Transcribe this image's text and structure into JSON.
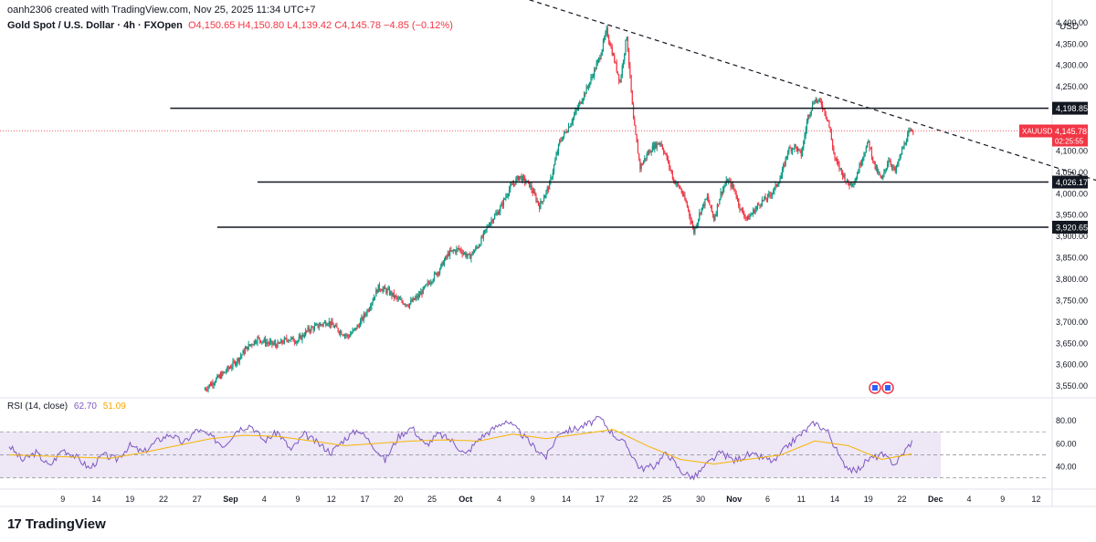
{
  "header": {
    "credit": "oanh2306 created with TradingView.com, Nov 25, 2025 11:34 UTC+7",
    "symbol_title": "Gold Spot / U.S. Dollar · 4h · FXOpen",
    "ohlc": "O4,150.65 H4,150.80 L4,139.42 C4,145.78 −4.85 (−0.12%)"
  },
  "currency": "USD",
  "logo": {
    "mark": "17",
    "text": "TradingView"
  },
  "rsi": {
    "title": "RSI (14, close)",
    "value1": "62.70",
    "value2": "51.09"
  },
  "price_tag": {
    "symbol": "XAUUSD",
    "price": "4,145.78",
    "countdown": "02:25:55"
  },
  "colors": {
    "up": "#089981",
    "down": "#f23645",
    "rsi": "#7e57c2",
    "rsi_ma": "#f7b500",
    "band": "#ede7f6"
  },
  "chart_data": [
    {
      "type": "candlestick",
      "timeframe": "4h",
      "price_axis": {
        "min": 3530,
        "max": 4420,
        "ticks": [
          4400,
          4350,
          4300,
          4250,
          4200,
          4150,
          4100,
          4050,
          4000,
          3950,
          3900,
          3850,
          3800,
          3750,
          3700,
          3650,
          3600,
          3550
        ],
        "tick_labels": [
          "4,400.00",
          "4,350.00",
          "4,300.00",
          "4,250.00",
          "4,200.00",
          "4,150.00",
          "4,100.00",
          "4,050.00",
          "4,000.00",
          "3,950.00",
          "3,900.00",
          "3,850.00",
          "3,800.00",
          "3,750.00",
          "3,700.00",
          "3,650.00",
          "3,600.00",
          "3,550.00"
        ]
      },
      "time_axis": {
        "ticks": [
          {
            "day": 9,
            "label": "9"
          },
          {
            "day": 14,
            "label": "14"
          },
          {
            "day": 19,
            "label": "19"
          },
          {
            "day": 24,
            "label": "22"
          },
          {
            "day": 29,
            "label": "27"
          },
          {
            "day": 34,
            "label": "Sep"
          },
          {
            "day": 39,
            "label": "4"
          },
          {
            "day": 44,
            "label": "9"
          },
          {
            "day": 49,
            "label": "12"
          },
          {
            "day": 54,
            "label": "17"
          },
          {
            "day": 59,
            "label": "20"
          },
          {
            "day": 64,
            "label": "25"
          },
          {
            "day": 69,
            "label": "Oct"
          },
          {
            "day": 74,
            "label": "4"
          },
          {
            "day": 79,
            "label": "9"
          },
          {
            "day": 84,
            "label": "14"
          },
          {
            "day": 89,
            "label": "17"
          },
          {
            "day": 94,
            "label": "22"
          },
          {
            "day": 99,
            "label": "25"
          },
          {
            "day": 104,
            "label": "30"
          },
          {
            "day": 109,
            "label": "Nov"
          },
          {
            "day": 114,
            "label": "6"
          },
          {
            "day": 119,
            "label": "11"
          },
          {
            "day": 124,
            "label": "14"
          },
          {
            "day": 129,
            "label": "19"
          },
          {
            "day": 134,
            "label": "22"
          },
          {
            "day": 139,
            "label": "Dec"
          },
          {
            "day": 144,
            "label": "4"
          },
          {
            "day": 149,
            "label": "9"
          },
          {
            "day": 154,
            "label": "12"
          }
        ],
        "bold_labels": [
          "Sep",
          "Oct",
          "Nov",
          "Dec"
        ]
      },
      "price_path": [
        [
          30,
          3540
        ],
        [
          31.5,
          3560
        ],
        [
          33,
          3580
        ],
        [
          35,
          3610
        ],
        [
          36.5,
          3640
        ],
        [
          38,
          3660
        ],
        [
          39.5,
          3650
        ],
        [
          41,
          3645
        ],
        [
          42.5,
          3660
        ],
        [
          44,
          3655
        ],
        [
          45.5,
          3680
        ],
        [
          47,
          3690
        ],
        [
          48.5,
          3700
        ],
        [
          50,
          3680
        ],
        [
          51.5,
          3665
        ],
        [
          53,
          3690
        ],
        [
          54.5,
          3730
        ],
        [
          56,
          3780
        ],
        [
          57.5,
          3770
        ],
        [
          59,
          3750
        ],
        [
          60.5,
          3740
        ],
        [
          62,
          3760
        ],
        [
          63.5,
          3790
        ],
        [
          65,
          3820
        ],
        [
          66.5,
          3860
        ],
        [
          68,
          3870
        ],
        [
          69.5,
          3850
        ],
        [
          71,
          3880
        ],
        [
          72.5,
          3930
        ],
        [
          74,
          3960
        ],
        [
          75.5,
          4010
        ],
        [
          77,
          4040
        ],
        [
          78.5,
          4020
        ],
        [
          80,
          3970
        ],
        [
          81.5,
          4020
        ],
        [
          83,
          4120
        ],
        [
          84.5,
          4160
        ],
        [
          86,
          4210
        ],
        [
          87.5,
          4260
        ],
        [
          89,
          4320
        ],
        [
          90,
          4380
        ],
        [
          91,
          4320
        ],
        [
          92,
          4260
        ],
        [
          93,
          4370
        ],
        [
          94,
          4170
        ],
        [
          95,
          4060
        ],
        [
          96,
          4090
        ],
        [
          97,
          4110
        ],
        [
          98,
          4120
        ],
        [
          99,
          4080
        ],
        [
          100,
          4030
        ],
        [
          101,
          4010
        ],
        [
          102,
          3970
        ],
        [
          103,
          3910
        ],
        [
          104,
          3960
        ],
        [
          105,
          3990
        ],
        [
          106,
          3940
        ],
        [
          107,
          4000
        ],
        [
          108,
          4030
        ],
        [
          109,
          4010
        ],
        [
          110,
          3960
        ],
        [
          111,
          3940
        ],
        [
          112,
          3960
        ],
        [
          113,
          3980
        ],
        [
          114,
          3990
        ],
        [
          115,
          4010
        ],
        [
          116,
          4040
        ],
        [
          117,
          4100
        ],
        [
          118,
          4110
        ],
        [
          119,
          4090
        ],
        [
          120,
          4180
        ],
        [
          121,
          4220
        ],
        [
          122,
          4210
        ],
        [
          123,
          4170
        ],
        [
          124,
          4080
        ],
        [
          125,
          4050
        ],
        [
          126,
          4020
        ],
        [
          127,
          4030
        ],
        [
          128,
          4080
        ],
        [
          129,
          4120
        ],
        [
          130,
          4060
        ],
        [
          131,
          4030
        ],
        [
          132,
          4080
        ],
        [
          133,
          4050
        ],
        [
          134,
          4100
        ],
        [
          135,
          4140
        ],
        [
          135.7,
          4146
        ]
      ],
      "horizontal_levels": [
        {
          "price": 4198.85,
          "label": "4,198.85",
          "start_day": 25
        },
        {
          "price": 4026.17,
          "label": "4,026.17",
          "start_day": 38
        },
        {
          "price": 3920.65,
          "label": "3,920.65",
          "start_day": 32
        }
      ],
      "trendline": {
        "p1": {
          "day": 75,
          "price": 4470
        },
        "p2": {
          "day": 92,
          "price": 4385
        },
        "extend_to_day": 163
      },
      "last_price": 4145.78
    },
    {
      "type": "line",
      "title": "RSI (14, close)",
      "y_axis": {
        "min": 25,
        "max": 90,
        "ticks": [
          80,
          60,
          40
        ],
        "tick_labels": [
          "80.00",
          "60.00",
          "40.00"
        ]
      },
      "bands": {
        "upper": 70,
        "lower": 30,
        "middle": 50
      },
      "rsi_path": [
        [
          1,
          58
        ],
        [
          3,
          45
        ],
        [
          5,
          52
        ],
        [
          7,
          40
        ],
        [
          9,
          55
        ],
        [
          11,
          48
        ],
        [
          13,
          38
        ],
        [
          15,
          50
        ],
        [
          17,
          46
        ],
        [
          19,
          58
        ],
        [
          21,
          52
        ],
        [
          23,
          62
        ],
        [
          25,
          68
        ],
        [
          27,
          60
        ],
        [
          29,
          72
        ],
        [
          31,
          66
        ],
        [
          33,
          58
        ],
        [
          35,
          72
        ],
        [
          37,
          76
        ],
        [
          39,
          62
        ],
        [
          41,
          70
        ],
        [
          43,
          54
        ],
        [
          45,
          68
        ],
        [
          47,
          60
        ],
        [
          49,
          52
        ],
        [
          51,
          64
        ],
        [
          53,
          72
        ],
        [
          55,
          60
        ],
        [
          57,
          45
        ],
        [
          59,
          66
        ],
        [
          61,
          74
        ],
        [
          63,
          58
        ],
        [
          65,
          68
        ],
        [
          67,
          62
        ],
        [
          69,
          50
        ],
        [
          71,
          64
        ],
        [
          73,
          72
        ],
        [
          75,
          80
        ],
        [
          77,
          70
        ],
        [
          79,
          58
        ],
        [
          81,
          48
        ],
        [
          83,
          70
        ],
        [
          85,
          72
        ],
        [
          87,
          76
        ],
        [
          89,
          82
        ],
        [
          91,
          68
        ],
        [
          93,
          58
        ],
        [
          95,
          38
        ],
        [
          97,
          40
        ],
        [
          99,
          52
        ],
        [
          101,
          36
        ],
        [
          103,
          30
        ],
        [
          105,
          42
        ],
        [
          107,
          52
        ],
        [
          109,
          45
        ],
        [
          111,
          50
        ],
        [
          113,
          48
        ],
        [
          115,
          44
        ],
        [
          117,
          58
        ],
        [
          119,
          68
        ],
        [
          121,
          78
        ],
        [
          123,
          70
        ],
        [
          125,
          44
        ],
        [
          127,
          35
        ],
        [
          129,
          46
        ],
        [
          131,
          50
        ],
        [
          133,
          42
        ],
        [
          135,
          58
        ],
        [
          135.7,
          62.7
        ]
      ],
      "ma_path": [
        [
          1,
          50
        ],
        [
          6,
          49
        ],
        [
          11,
          48
        ],
        [
          16,
          47
        ],
        [
          21,
          52
        ],
        [
          26,
          58
        ],
        [
          31,
          64
        ],
        [
          36,
          67
        ],
        [
          41,
          66
        ],
        [
          46,
          62
        ],
        [
          51,
          58
        ],
        [
          56,
          60
        ],
        [
          61,
          62
        ],
        [
          66,
          63
        ],
        [
          71,
          62
        ],
        [
          76,
          68
        ],
        [
          81,
          64
        ],
        [
          86,
          68
        ],
        [
          91,
          72
        ],
        [
          96,
          58
        ],
        [
          101,
          46
        ],
        [
          106,
          42
        ],
        [
          111,
          46
        ],
        [
          116,
          50
        ],
        [
          121,
          62
        ],
        [
          126,
          58
        ],
        [
          131,
          46
        ],
        [
          135.7,
          51.09
        ]
      ]
    }
  ]
}
